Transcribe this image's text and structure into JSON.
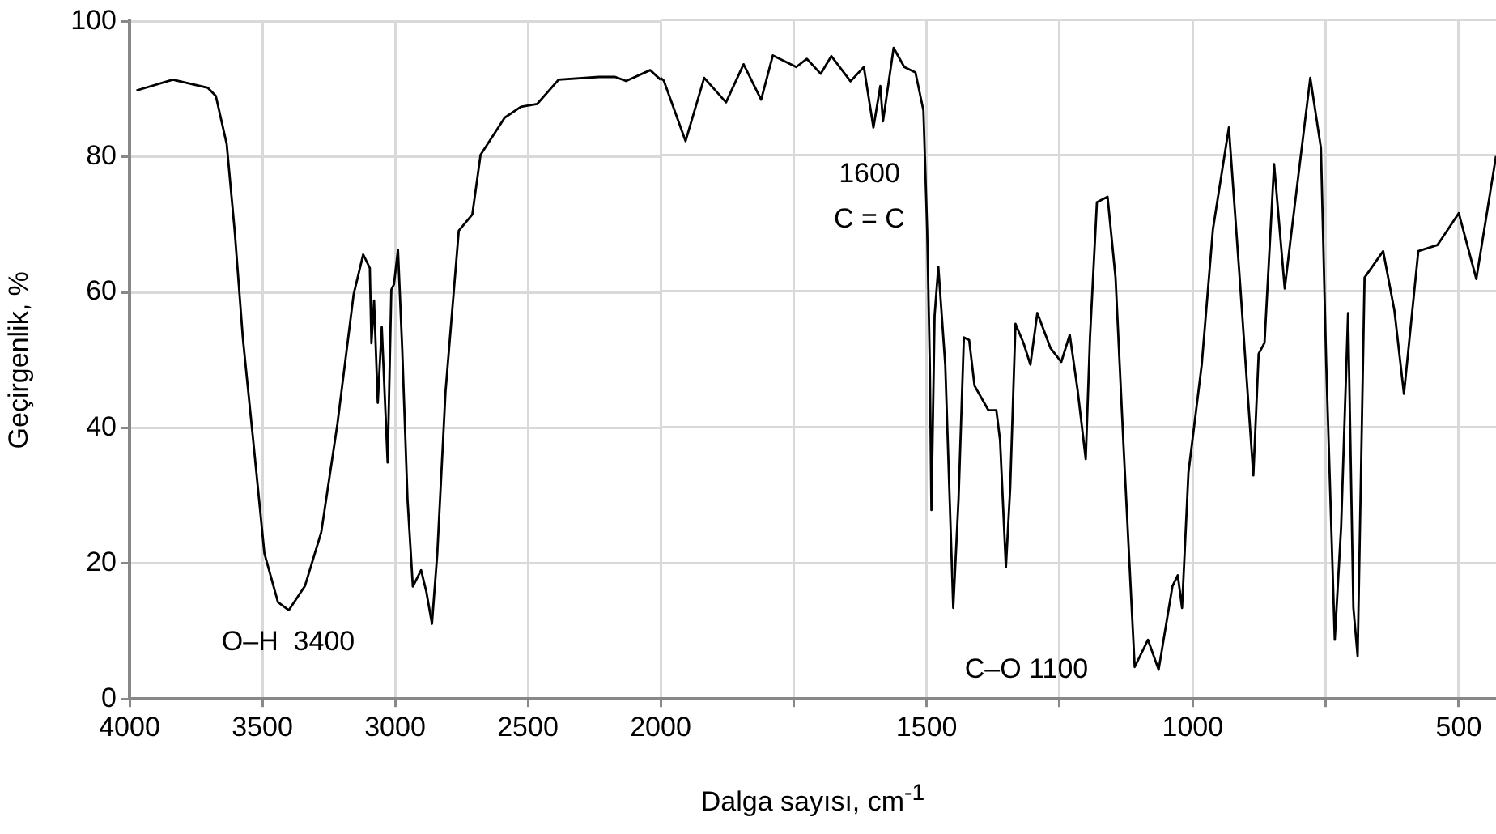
{
  "chart_data": [
    {
      "type": "line",
      "ylabel": "Geçirgenlik, %",
      "xlim": [
        4000,
        2000
      ],
      "ylim": [
        0,
        100
      ],
      "xticks": [
        4000,
        3500,
        3000,
        2500,
        2000
      ],
      "yticks": [
        0,
        20,
        40,
        60,
        80,
        100
      ],
      "grid": true,
      "legend": false,
      "marker": "none",
      "line_style": "solid",
      "annotations": [
        "O–H  3400"
      ],
      "series": [
        {
          "color": "#000000",
          "x": [
            3974,
            3837,
            3705,
            3675,
            3634,
            3604,
            3573,
            3532,
            3492,
            3441,
            3400,
            3339,
            3278,
            3217,
            3156,
            3120,
            3095,
            3089,
            3079,
            3065,
            3050,
            3028,
            3014,
            3004,
            2989,
            2973,
            2953,
            2933,
            2902,
            2882,
            2861,
            2841,
            2810,
            2760,
            2709,
            2678,
            2587,
            2526,
            2465,
            2384,
            2232,
            2171,
            2130,
            2039,
            2000
          ],
          "values": [
            89.8,
            91.4,
            90.2,
            89,
            81.9,
            69.1,
            53.2,
            37.3,
            21.5,
            14.3,
            13.1,
            16.7,
            24.6,
            40.6,
            59.7,
            65.6,
            63.6,
            52.5,
            58.8,
            43.7,
            54.9,
            34.9,
            60.4,
            61.2,
            66.3,
            51.6,
            29.4,
            16.6,
            19,
            15.8,
            11.1,
            21.4,
            45.3,
            69.1,
            71.5,
            80.3,
            85.8,
            87.4,
            87.8,
            91.4,
            91.8,
            91.8,
            91.2,
            92.8,
            91.4
          ]
        }
      ]
    },
    {
      "type": "line",
      "xlabel": "Dalga sayısı, cm$^{-1}$",
      "xlim": [
        2000,
        430
      ],
      "ylim": [
        0,
        100
      ],
      "xticks": [
        {
          "value": 1750,
          "label": null
        },
        1500,
        {
          "value": 1250,
          "label": null
        },
        1000,
        {
          "value": 750,
          "label": null
        },
        500
      ],
      "yticks": [
        0,
        20,
        40,
        60,
        80,
        100
      ],
      "tick_labels": "x",
      "grid": true,
      "legend": false,
      "marker": "none",
      "line_style": "solid",
      "annotations": [
        "1600\nC = C",
        "C–O 1100"
      ],
      "series": [
        {
          "color": "#000000",
          "x": [
            2000,
            1994,
            1953,
            1918,
            1877,
            1844,
            1811,
            1789,
            1745,
            1725,
            1699,
            1679,
            1643,
            1618,
            1600,
            1587,
            1582,
            1562,
            1542,
            1521,
            1506,
            1499,
            1494,
            1491,
            1485,
            1478,
            1465,
            1450,
            1440,
            1430,
            1420,
            1410,
            1384,
            1369,
            1362,
            1351,
            1343,
            1333,
            1318,
            1305,
            1292,
            1267,
            1247,
            1231,
            1216,
            1201,
            1193,
            1180,
            1160,
            1145,
            1130,
            1109,
            1084,
            1064,
            1038,
            1028,
            1020,
            1008,
            983,
            962,
            932,
            911,
            886,
            876,
            865,
            847,
            827,
            815,
            779,
            759,
            749,
            733,
            721,
            708,
            698,
            690,
            677,
            642,
            621,
            603,
            576,
            540,
            500,
            467,
            430
          ],
          "values": [
            91.4,
            91,
            82.1,
            91.4,
            87.8,
            93.4,
            88.2,
            94.7,
            93,
            94.2,
            92,
            94.6,
            90.9,
            93,
            84.1,
            90.2,
            85,
            95.8,
            93,
            92.2,
            86.6,
            69.1,
            49.2,
            27.8,
            56.4,
            63.6,
            49.2,
            13.4,
            29.4,
            53.2,
            52.8,
            46.1,
            42.5,
            42.5,
            38.1,
            19.4,
            31,
            55.2,
            52.4,
            49.2,
            56.8,
            51.6,
            49.6,
            53.6,
            45.3,
            35.3,
            53.2,
            73.1,
            73.9,
            62,
            37.3,
            4.7,
            8.7,
            4.3,
            16.6,
            18.2,
            13.4,
            33.3,
            49.2,
            69.1,
            84.1,
            61.2,
            32.9,
            50.8,
            52.4,
            78.7,
            60.4,
            68.3,
            91.4,
            81.1,
            49.2,
            8.7,
            25.4,
            56.8,
            13.4,
            6.3,
            62,
            65.9,
            57.2,
            44.9,
            65.9,
            66.8,
            71.5,
            61.8,
            79.9
          ]
        }
      ]
    }
  ]
}
